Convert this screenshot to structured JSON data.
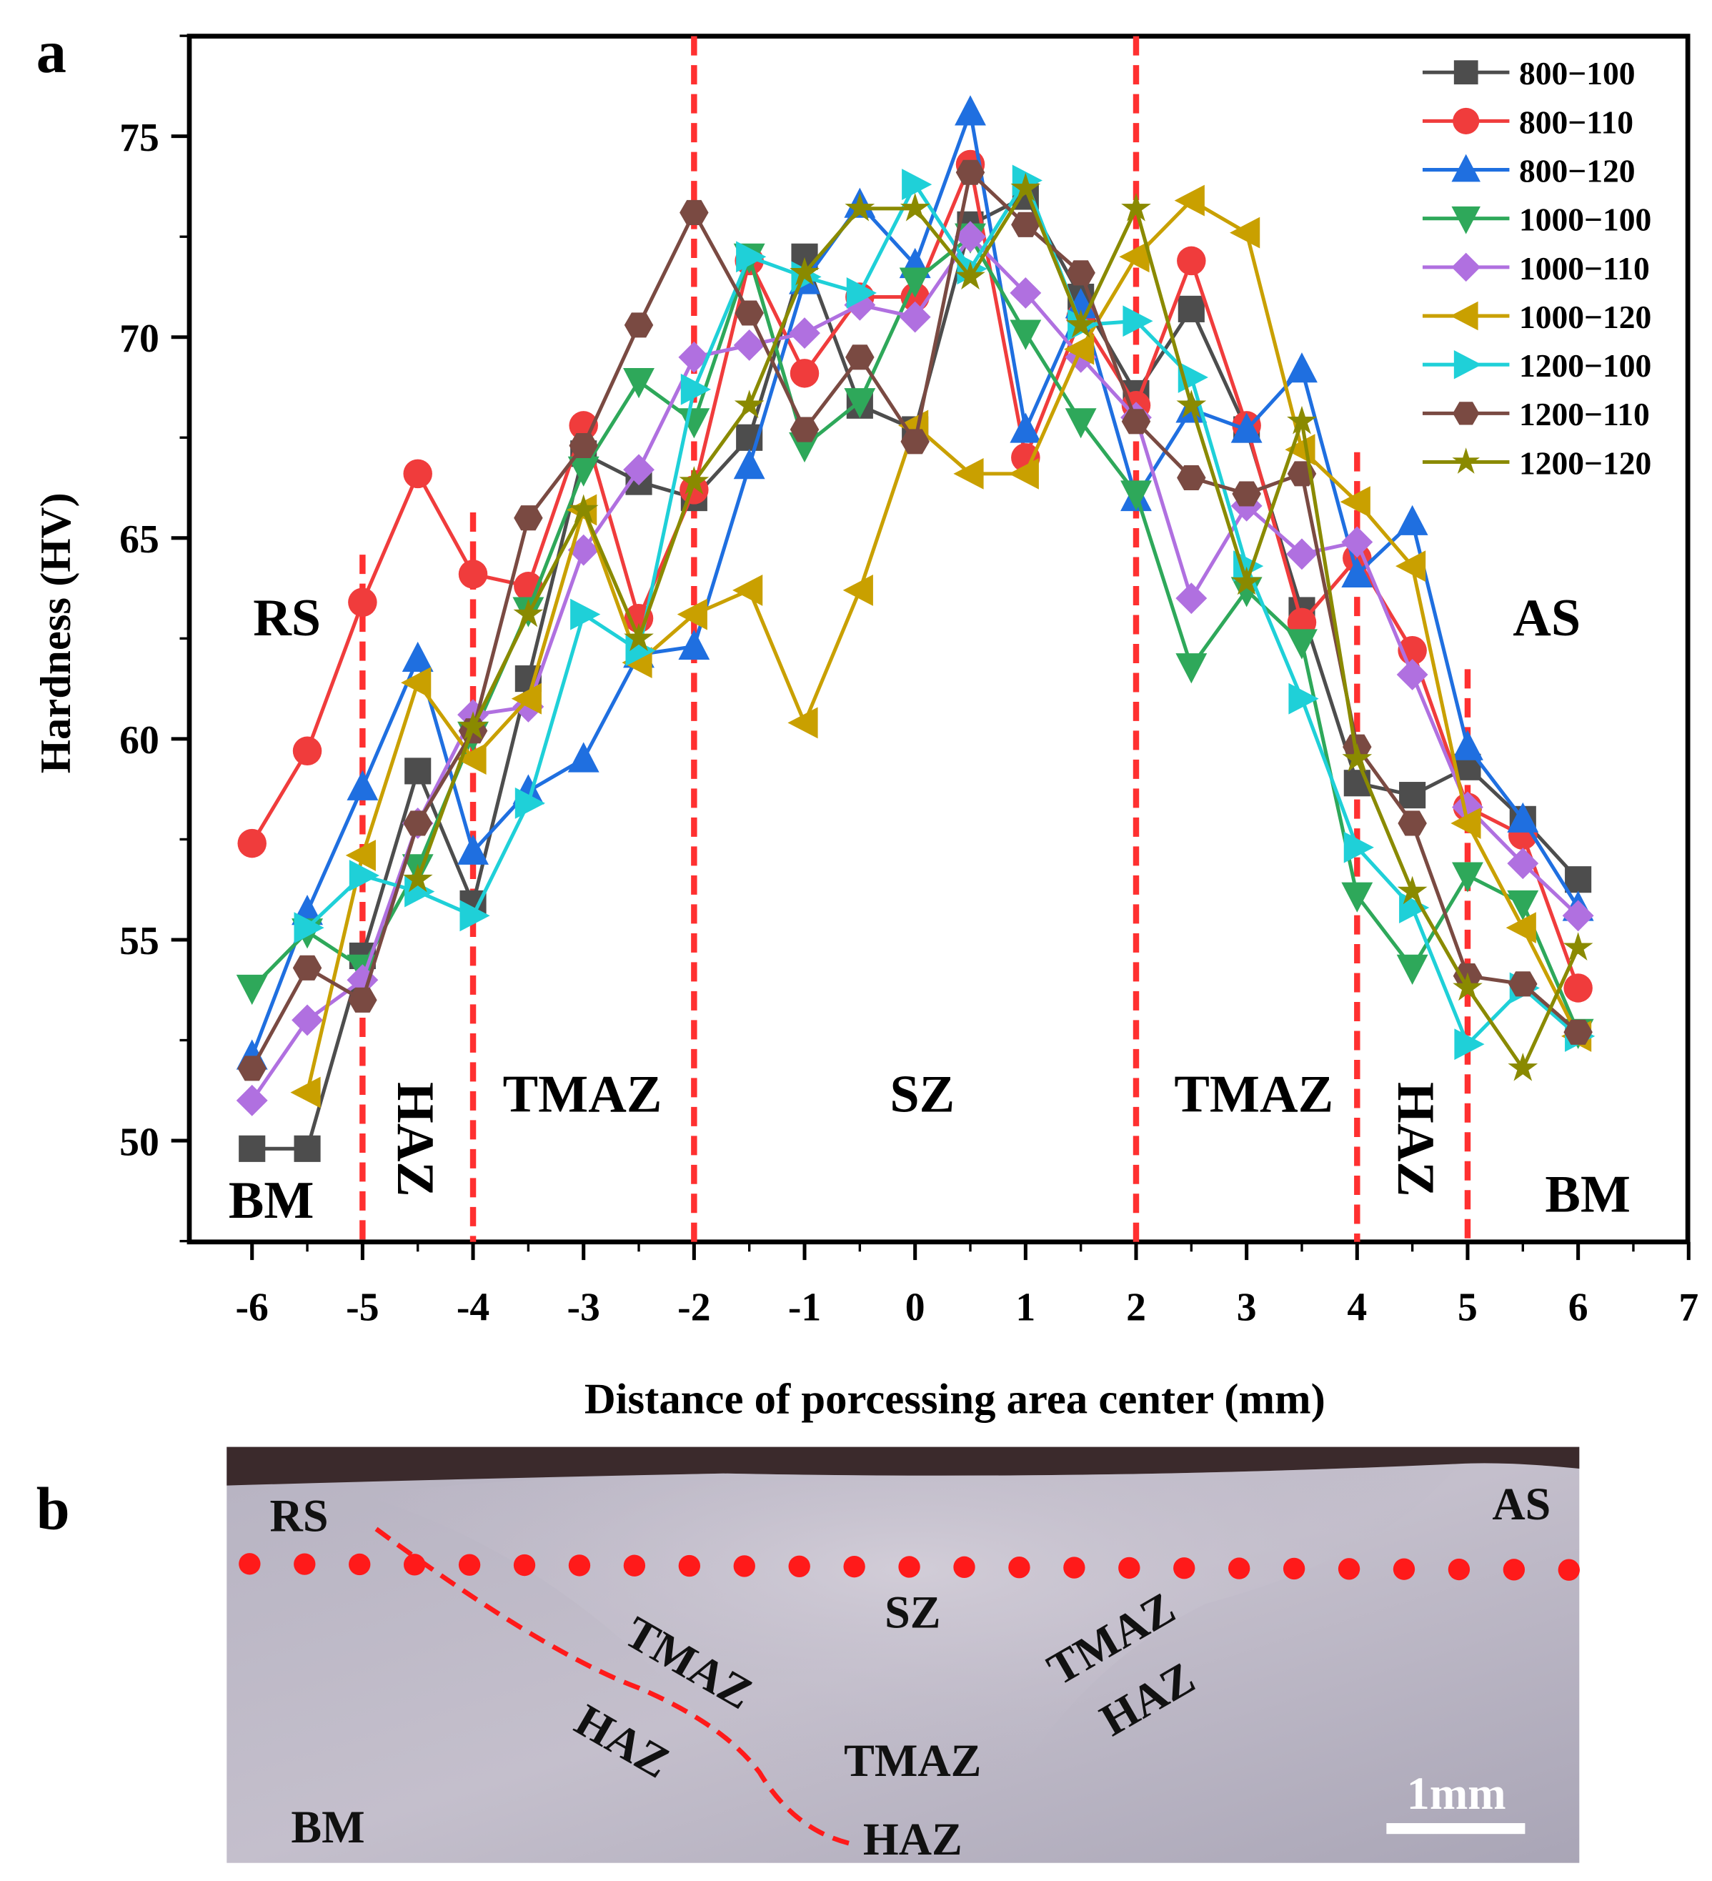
{
  "panel_labels": {
    "a": "a",
    "b": "b"
  },
  "chart_data": {
    "type": "line",
    "title": "",
    "xlabel": "Distance of porcessing area center (mm)",
    "ylabel": "Hardness (HV)",
    "xlim": [
      -6.6,
      7
    ],
    "ylim": [
      47.5,
      77.5
    ],
    "xticks": [
      "-6",
      "-5",
      "-4",
      "-3",
      "-2",
      "-1",
      "0",
      "1",
      "2",
      "3",
      "4",
      "5",
      "6",
      "7"
    ],
    "yticks": [
      "50",
      "55",
      "60",
      "65",
      "70",
      "75"
    ],
    "legend_position": "top-right",
    "x": [
      -6,
      -5.5,
      -5,
      -4.5,
      -4,
      -3.5,
      -3,
      -2.5,
      -2,
      -1.5,
      -1,
      -0.5,
      0,
      0.5,
      1,
      1.5,
      2,
      2.5,
      3,
      3.5,
      4,
      4.5,
      5,
      5.5,
      6
    ],
    "series": [
      {
        "name": "800−100",
        "color": "#4d4d4d",
        "marker": "square",
        "values": [
          49.8,
          49.8,
          54.6,
          59.2,
          55.9,
          61.5,
          67.1,
          66.4,
          66.0,
          67.5,
          72.0,
          68.3,
          67.7,
          72.8,
          73.5,
          71.0,
          68.6,
          70.7,
          67.7,
          63.2,
          58.9,
          58.6,
          59.3,
          58.0,
          56.5
        ]
      },
      {
        "name": "800−110",
        "color": "#f03c3c",
        "marker": "circle",
        "values": [
          57.4,
          59.7,
          63.4,
          66.6,
          64.1,
          63.8,
          67.8,
          63.0,
          66.2,
          71.9,
          69.1,
          71.0,
          71.0,
          74.3,
          67.0,
          70.5,
          68.3,
          71.9,
          67.8,
          62.9,
          64.5,
          62.2,
          58.3,
          57.6,
          53.8
        ]
      },
      {
        "name": "800−120",
        "color": "#1f6fe0",
        "marker": "triangle-up",
        "values": [
          52.1,
          55.7,
          58.8,
          62.0,
          57.2,
          58.7,
          59.5,
          62.1,
          62.3,
          66.8,
          71.4,
          73.3,
          71.8,
          75.6,
          67.7,
          70.8,
          66.0,
          68.2,
          67.7,
          69.2,
          64.1,
          65.4,
          59.8,
          58.0,
          55.8
        ]
      },
      {
        "name": "1000−100",
        "color": "#2ea85a",
        "marker": "triangle-down",
        "values": [
          53.8,
          55.2,
          54.3,
          56.8,
          60.1,
          63.2,
          66.7,
          68.9,
          67.9,
          72.0,
          67.3,
          68.4,
          71.4,
          72.5,
          70.1,
          67.9,
          66.1,
          61.8,
          63.7,
          62.4,
          56.1,
          54.3,
          56.6,
          55.9,
          52.7
        ]
      },
      {
        "name": "1000−110",
        "color": "#b070e0",
        "marker": "diamond",
        "values": [
          51.0,
          53.0,
          54.0,
          57.9,
          60.6,
          60.8,
          64.7,
          66.7,
          69.5,
          69.8,
          70.1,
          70.8,
          70.5,
          72.5,
          71.1,
          69.5,
          68.0,
          63.5,
          65.8,
          64.6,
          64.9,
          61.6,
          58.3,
          56.9,
          55.6
        ]
      },
      {
        "name": "1000−120",
        "color": "#c9a000",
        "marker": "triangle-left",
        "values": [
          null,
          51.2,
          57.1,
          61.4,
          59.5,
          61.0,
          65.7,
          61.9,
          63.1,
          63.7,
          60.4,
          63.7,
          67.8,
          66.6,
          66.6,
          69.7,
          72.0,
          73.4,
          72.6,
          67.2,
          65.9,
          64.3,
          57.9,
          55.3,
          52.6
        ]
      },
      {
        "name": "1200−100",
        "color": "#1fd0d8",
        "marker": "triangle-right",
        "values": [
          null,
          55.3,
          56.6,
          56.2,
          55.6,
          58.4,
          63.1,
          62.2,
          68.7,
          72.0,
          71.5,
          71.1,
          73.8,
          71.7,
          73.9,
          70.3,
          70.4,
          69.0,
          64.3,
          61.0,
          57.3,
          55.8,
          52.4,
          53.8,
          52.6
        ]
      },
      {
        "name": "1200−110",
        "color": "#7a4a42",
        "marker": "hexagon",
        "values": [
          51.8,
          54.3,
          53.5,
          57.9,
          60.2,
          65.5,
          67.3,
          70.3,
          73.1,
          70.6,
          67.7,
          69.5,
          67.4,
          74.1,
          72.8,
          71.6,
          67.9,
          66.5,
          66.1,
          66.6,
          59.8,
          57.9,
          54.1,
          53.9,
          52.7
        ]
      },
      {
        "name": "1200−120",
        "color": "#8a8a00",
        "marker": "star",
        "values": [
          null,
          null,
          null,
          56.5,
          60.3,
          63.1,
          65.7,
          62.5,
          66.4,
          68.3,
          71.6,
          73.2,
          73.2,
          71.5,
          73.7,
          70.3,
          73.2,
          68.3,
          63.9,
          67.9,
          59.5,
          56.2,
          53.8,
          51.8,
          54.8
        ]
      }
    ],
    "zone_boundaries": [
      -5,
      -4,
      -2,
      2,
      4,
      5
    ],
    "annotations": [
      "RS",
      "AS",
      "BM",
      "BM",
      "HAZ",
      "HAZ",
      "TMAZ",
      "TMAZ",
      "SZ"
    ]
  },
  "micrograph": {
    "labels": {
      "rs": "RS",
      "as": "AS",
      "sz": "SZ",
      "tmaz_left": "TMAZ",
      "haz_left": "HAZ",
      "tmaz_right": "TMAZ",
      "haz_right": "HAZ",
      "tmaz_bottom": "TMAZ",
      "haz_bottom": "HAZ",
      "bm": "BM"
    },
    "scale_bar": "1mm",
    "dot_color": "#ff1a1a"
  }
}
